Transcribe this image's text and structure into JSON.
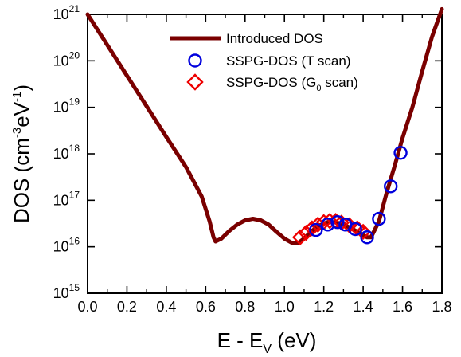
{
  "chart_data": {
    "type": "line",
    "xlabel": "E - E_V (eV)",
    "ylabel": "DOS (cm^-3 eV^-1)",
    "xlim": [
      0.0,
      1.8
    ],
    "ylim": [
      1000000000000000.0,
      1e+21
    ],
    "yscale": "log",
    "grid": false,
    "legend_placement": "top-center",
    "x_ticks": [
      "0.0",
      "0.2",
      "0.4",
      "0.6",
      "0.8",
      "1.0",
      "1.2",
      "1.4",
      "1.6",
      "1.8"
    ],
    "y_ticks": [
      {
        "base": "10",
        "exp": "15"
      },
      {
        "base": "10",
        "exp": "16"
      },
      {
        "base": "10",
        "exp": "17"
      },
      {
        "base": "10",
        "exp": "18"
      },
      {
        "base": "10",
        "exp": "19"
      },
      {
        "base": "10",
        "exp": "20"
      },
      {
        "base": "10",
        "exp": "21"
      }
    ],
    "series": [
      {
        "name": "Introduced DOS",
        "kind": "line",
        "color": "#7a0000",
        "points": [
          [
            0.0,
            1e+21
          ],
          [
            0.1,
            2.2e+20
          ],
          [
            0.2,
            4.8e+19
          ],
          [
            0.3,
            1.05e+19
          ],
          [
            0.4,
            2.3e+18
          ],
          [
            0.5,
            5.2e+17
          ],
          [
            0.58,
            1.2e+17
          ],
          [
            0.62,
            3.5e+16
          ],
          [
            0.64,
            1.6e+16
          ],
          [
            0.65,
            1.3e+16
          ],
          [
            0.68,
            1.5e+16
          ],
          [
            0.72,
            2.2e+16
          ],
          [
            0.76,
            3e+16
          ],
          [
            0.8,
            3.7e+16
          ],
          [
            0.84,
            4e+16
          ],
          [
            0.88,
            3.7e+16
          ],
          [
            0.92,
            3e+16
          ],
          [
            0.96,
            2.1e+16
          ],
          [
            1.0,
            1.5e+16
          ],
          [
            1.04,
            1.2e+16
          ],
          [
            1.07,
            1.2e+16
          ],
          [
            1.1,
            1.5e+16
          ],
          [
            1.14,
            2.2e+16
          ],
          [
            1.18,
            2.9e+16
          ],
          [
            1.22,
            3.4e+16
          ],
          [
            1.26,
            3.4e+16
          ],
          [
            1.3,
            3e+16
          ],
          [
            1.34,
            2.5e+16
          ],
          [
            1.38,
            2e+16
          ],
          [
            1.42,
            1.6e+16
          ],
          [
            1.44,
            1.6e+16
          ],
          [
            1.48,
            3.5e+16
          ],
          [
            1.52,
            1.5e+17
          ],
          [
            1.56,
            5.5e+17
          ],
          [
            1.6,
            2.2e+18
          ],
          [
            1.65,
            1e+19
          ],
          [
            1.7,
            6e+19
          ],
          [
            1.75,
            3.3e+20
          ],
          [
            1.8,
            1.3e+21
          ]
        ]
      },
      {
        "name": "SSPG-DOS (T scan)",
        "kind": "circle",
        "color": "#0000dd",
        "points": [
          [
            1.16,
            2.3e+16
          ],
          [
            1.22,
            3e+16
          ],
          [
            1.27,
            3.4e+16
          ],
          [
            1.31,
            3e+16
          ],
          [
            1.36,
            2.4e+16
          ],
          [
            1.42,
            1.6e+16
          ],
          [
            1.48,
            4e+16
          ],
          [
            1.54,
            2e+17
          ],
          [
            1.59,
            1.05e+18
          ]
        ]
      },
      {
        "name": "SSPG-DOS (G_0 scan)",
        "kind": "diamond",
        "color": "#ee0000",
        "points": [
          [
            1.08,
            1.6e+16
          ],
          [
            1.11,
            2e+16
          ],
          [
            1.14,
            2.5e+16
          ],
          [
            1.17,
            3e+16
          ],
          [
            1.2,
            3.4e+16
          ],
          [
            1.23,
            3.6e+16
          ],
          [
            1.26,
            3.6e+16
          ],
          [
            1.29,
            3.3e+16
          ],
          [
            1.33,
            2.9e+16
          ],
          [
            1.37,
            2.5e+16
          ],
          [
            1.4,
            2.1e+16
          ]
        ]
      }
    ]
  },
  "legend": {
    "entries": [
      {
        "label": "Introduced DOS",
        "prefix": "Introduced DOS",
        "sub": "",
        "suffix": ""
      },
      {
        "label": "SSPG-DOS (T scan)",
        "prefix": "SSPG-DOS (T scan)",
        "sub": "",
        "suffix": ""
      },
      {
        "label": "SSPG-DOS (G0 scan)",
        "prefix": "SSPG-DOS (G",
        "sub": "0",
        "suffix": " scan)"
      }
    ]
  },
  "axis_titles": {
    "x_prefix": "E - E",
    "x_sub": "V",
    "x_unit": "(eV)",
    "y_prefix": "DOS  (cm",
    "y_sup1": "-3",
    "y_mid": "eV",
    "y_sup2": "-1",
    "y_suffix": ")"
  }
}
